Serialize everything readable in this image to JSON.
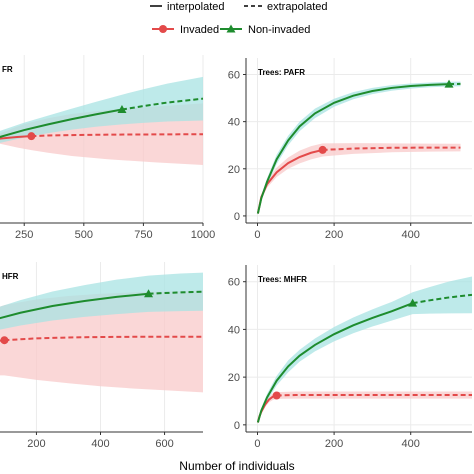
{
  "legend": {
    "lines": [
      {
        "label": "interpolated",
        "style": "solid"
      },
      {
        "label": "extrapolated",
        "style": "dashed"
      }
    ],
    "groups": [
      {
        "label": "Invaded",
        "color": "#e34a4a",
        "marker": "circle"
      },
      {
        "label": "Non-invaded",
        "color": "#1e8c2e",
        "marker": "triangle"
      }
    ]
  },
  "colors": {
    "invaded": "#e34a4a",
    "invaded_band": "#f8c9c9",
    "noninvaded": "#1e8c2e",
    "noninvaded_band": "#a8e3e3"
  },
  "xlabel": "Number of individuals",
  "chart_data": [
    {
      "type": "line",
      "title": "FR",
      "xlim": [
        140,
        1000
      ],
      "ylim": [
        -5,
        72
      ],
      "xticks": [
        250,
        500,
        750,
        1000
      ],
      "yticks": [],
      "series": [
        {
          "name": "Invaded",
          "group": "invaded",
          "observed_x": 280,
          "x": [
            140,
            180,
            220,
            260,
            280,
            350,
            450,
            600,
            800,
            1000
          ],
          "y": [
            33.6,
            34.0,
            34.4,
            34.7,
            34.8,
            35.1,
            35.3,
            35.5,
            35.6,
            35.7
          ],
          "lower": [
            31.5,
            30.6,
            29.6,
            28.8,
            28.4,
            27.2,
            25.7,
            24.2,
            22.8,
            21.6
          ],
          "upper": [
            35.7,
            37.4,
            39.2,
            40.6,
            41.2,
            43.0,
            45.0,
            46.8,
            48.4,
            49.8
          ]
        },
        {
          "name": "Non-invaded",
          "group": "noninvaded",
          "observed_x": 660,
          "x": [
            140,
            250,
            350,
            450,
            550,
            660,
            750,
            850,
            1000
          ],
          "y": [
            34.2,
            37.6,
            40.2,
            42.6,
            44.8,
            47.0,
            48.6,
            50.2,
            52.0
          ],
          "lower": [
            31.5,
            34.2,
            36.2,
            37.8,
            39.1,
            40.2,
            40.9,
            41.5,
            42.0
          ],
          "upper": [
            36.9,
            41.0,
            44.2,
            47.4,
            50.5,
            53.8,
            56.3,
            58.9,
            62.0
          ]
        }
      ]
    },
    {
      "type": "line",
      "title": "Trees: PAFR",
      "xlim": [
        -30,
        560
      ],
      "ylim": [
        -3,
        67
      ],
      "xticks": [
        0,
        200,
        400
      ],
      "yticks": [
        0,
        20,
        40,
        60
      ],
      "series": [
        {
          "name": "Invaded",
          "group": "invaded",
          "observed_x": 170,
          "x": [
            1,
            10,
            25,
            50,
            80,
            110,
            140,
            170,
            250,
            350,
            450,
            530
          ],
          "y": [
            1,
            8.0,
            13.5,
            18.5,
            22.4,
            25.0,
            26.8,
            28.0,
            28.6,
            28.9,
            29.0,
            29.0
          ],
          "lower": [
            1,
            7.0,
            12.0,
            16.5,
            20.0,
            22.3,
            24.0,
            25.2,
            26.3,
            27.0,
            27.3,
            27.4
          ],
          "upper": [
            1,
            9.0,
            15.0,
            20.5,
            24.8,
            27.7,
            29.6,
            30.8,
            30.9,
            30.8,
            30.7,
            30.6
          ]
        },
        {
          "name": "Non-invaded",
          "group": "noninvaded",
          "observed_x": 500,
          "x": [
            1,
            10,
            25,
            50,
            80,
            110,
            150,
            200,
            250,
            300,
            350,
            400,
            450,
            500,
            530
          ],
          "y": [
            1,
            7.5,
            14.5,
            24.0,
            32.0,
            38.0,
            43.5,
            48.0,
            51.0,
            53.0,
            54.3,
            55.1,
            55.6,
            55.9,
            56.0
          ],
          "lower": [
            1,
            6.5,
            13.0,
            22.0,
            30.0,
            36.0,
            41.5,
            46.3,
            49.5,
            51.7,
            53.1,
            54.0,
            54.6,
            54.9,
            55.0
          ],
          "upper": [
            1,
            8.5,
            16.0,
            26.0,
            34.0,
            40.0,
            45.5,
            49.7,
            52.5,
            54.3,
            55.5,
            56.2,
            56.6,
            56.9,
            57.0
          ]
        }
      ]
    },
    {
      "type": "line",
      "title": "HFR",
      "xlim": [
        80,
        720
      ],
      "ylim": [
        -5,
        70
      ],
      "xticks": [
        200,
        400,
        600
      ],
      "yticks": [],
      "series": [
        {
          "name": "Invaded",
          "group": "invaded",
          "observed_x": 100,
          "x": [
            80,
            100,
            200,
            300,
            400,
            500,
            600,
            720
          ],
          "y": [
            35.2,
            35.5,
            36.3,
            36.7,
            36.9,
            37.0,
            37.0,
            37.0
          ],
          "lower": [
            20.0,
            20.0,
            18.0,
            16.5,
            15.2,
            14.2,
            13.4,
            12.5
          ],
          "upper": [
            50.0,
            51.0,
            53.5,
            55.0,
            56.0,
            56.6,
            57.0,
            57.5
          ]
        },
        {
          "name": "Non-invaded",
          "group": "noninvaded",
          "observed_x": 550,
          "x": [
            80,
            150,
            250,
            350,
            450,
            550,
            650,
            720
          ],
          "y": [
            45.0,
            47.6,
            50.6,
            52.8,
            54.6,
            56.0,
            56.6,
            56.9
          ],
          "lower": [
            40.0,
            42.0,
            44.2,
            45.8,
            47.0,
            48.0,
            48.3,
            48.5
          ],
          "upper": [
            50.0,
            53.2,
            57.0,
            59.8,
            62.2,
            64.0,
            64.9,
            65.3
          ]
        }
      ]
    },
    {
      "type": "line",
      "title": "Trees: MHFR",
      "xlim": [
        -30,
        560
      ],
      "ylim": [
        -3,
        67
      ],
      "xticks": [
        0,
        200,
        400
      ],
      "yticks": [
        0,
        20,
        40,
        60
      ],
      "series": [
        {
          "name": "Invaded",
          "group": "invaded",
          "observed_x": 50,
          "x": [
            1,
            5,
            10,
            20,
            30,
            40,
            50,
            100,
            200,
            300,
            400,
            500,
            560
          ],
          "y": [
            1,
            3.5,
            5.5,
            8.5,
            10.6,
            11.8,
            12.3,
            12.5,
            12.5,
            12.5,
            12.5,
            12.5,
            12.5
          ],
          "lower": [
            1,
            3.0,
            4.8,
            7.5,
            9.4,
            10.4,
            10.9,
            11.0,
            11.0,
            11.0,
            11.0,
            11.0,
            11.0
          ],
          "upper": [
            1,
            4.0,
            6.2,
            9.5,
            11.8,
            13.2,
            13.7,
            14.0,
            14.0,
            14.0,
            14.0,
            14.0,
            14.0
          ]
        },
        {
          "name": "Non-invaded",
          "group": "noninvaded",
          "observed_x": 405,
          "x": [
            1,
            10,
            25,
            50,
            80,
            110,
            150,
            200,
            250,
            300,
            350,
            405,
            450,
            500,
            560
          ],
          "y": [
            1,
            6.0,
            11.5,
            18.5,
            24.5,
            29.0,
            33.5,
            38.0,
            41.7,
            44.8,
            47.6,
            51.0,
            52.2,
            53.4,
            54.5
          ],
          "lower": [
            1,
            5.0,
            10.0,
            16.5,
            22.0,
            26.5,
            30.8,
            35.0,
            38.4,
            41.2,
            43.7,
            46.4,
            46.6,
            46.7,
            46.8
          ],
          "upper": [
            1,
            7.0,
            13.0,
            20.5,
            27.0,
            31.5,
            36.2,
            41.0,
            45.0,
            48.4,
            51.5,
            55.6,
            57.8,
            60.1,
            62.2
          ]
        }
      ]
    }
  ]
}
